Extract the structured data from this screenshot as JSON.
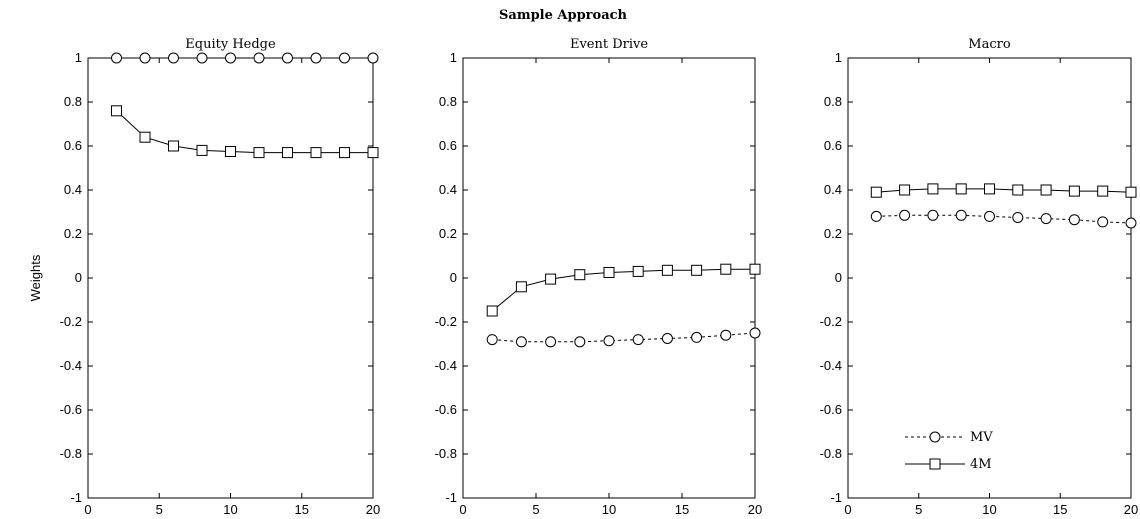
{
  "figure": {
    "title": "Sample Approach",
    "ylabel": "Weights"
  },
  "legend": {
    "entries": [
      {
        "label": "MV",
        "marker": "circle",
        "line": "dashed"
      },
      {
        "label": "4M",
        "marker": "square",
        "line": "solid"
      }
    ],
    "panel": 2,
    "placement": "bottom-left"
  },
  "chart_data": [
    {
      "type": "line",
      "title": "Equity Hedge",
      "xlim": [
        0,
        20
      ],
      "ylim": [
        -1,
        1
      ],
      "xticks": [
        0,
        5,
        10,
        15,
        20
      ],
      "yticks": [
        -1,
        -0.8,
        -0.6,
        -0.4,
        -0.2,
        0,
        0.2,
        0.4,
        0.6,
        0.8,
        1
      ],
      "x": [
        2,
        4,
        6,
        8,
        10,
        12,
        14,
        16,
        18,
        20
      ],
      "series": [
        {
          "name": "MV",
          "marker": "circle",
          "line": "dashed",
          "values": [
            1,
            1,
            1,
            1,
            1,
            1,
            1,
            1,
            1,
            1
          ]
        },
        {
          "name": "4M",
          "marker": "square",
          "line": "solid",
          "values": [
            0.76,
            0.64,
            0.6,
            0.58,
            0.575,
            0.57,
            0.57,
            0.57,
            0.57,
            0.57
          ]
        }
      ]
    },
    {
      "type": "line",
      "title": "Event Drive",
      "xlim": [
        0,
        20
      ],
      "ylim": [
        -1,
        1
      ],
      "xticks": [
        0,
        5,
        10,
        15,
        20
      ],
      "yticks": [
        -1,
        -0.8,
        -0.6,
        -0.4,
        -0.2,
        0,
        0.2,
        0.4,
        0.6,
        0.8,
        1
      ],
      "x": [
        2,
        4,
        6,
        8,
        10,
        12,
        14,
        16,
        18,
        20
      ],
      "series": [
        {
          "name": "MV",
          "marker": "circle",
          "line": "dashed",
          "values": [
            -0.28,
            -0.29,
            -0.29,
            -0.29,
            -0.285,
            -0.28,
            -0.275,
            -0.27,
            -0.26,
            -0.25
          ]
        },
        {
          "name": "4M",
          "marker": "square",
          "line": "solid",
          "values": [
            -0.15,
            -0.04,
            -0.005,
            0.015,
            0.025,
            0.03,
            0.035,
            0.035,
            0.04,
            0.04
          ]
        }
      ]
    },
    {
      "type": "line",
      "title": "Macro",
      "xlim": [
        0,
        20
      ],
      "ylim": [
        -1,
        1
      ],
      "xticks": [
        0,
        5,
        10,
        15,
        20
      ],
      "yticks": [
        -1,
        -0.8,
        -0.6,
        -0.4,
        -0.2,
        0,
        0.2,
        0.4,
        0.6,
        0.8,
        1
      ],
      "x": [
        2,
        4,
        6,
        8,
        10,
        12,
        14,
        16,
        18,
        20
      ],
      "series": [
        {
          "name": "MV",
          "marker": "circle",
          "line": "dashed",
          "values": [
            0.28,
            0.285,
            0.285,
            0.285,
            0.28,
            0.275,
            0.27,
            0.265,
            0.255,
            0.25
          ]
        },
        {
          "name": "4M",
          "marker": "square",
          "line": "solid",
          "values": [
            0.39,
            0.4,
            0.405,
            0.405,
            0.405,
            0.4,
            0.4,
            0.395,
            0.395,
            0.39
          ]
        }
      ]
    }
  ]
}
